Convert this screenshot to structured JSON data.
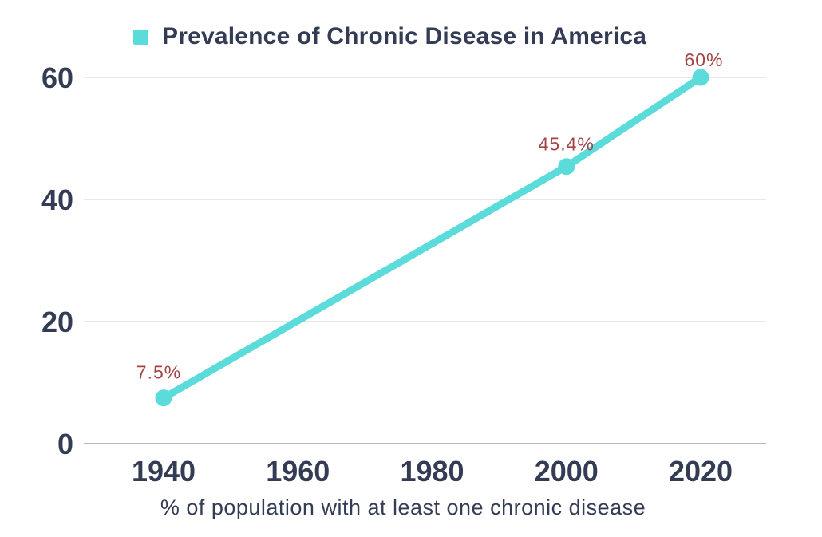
{
  "colors": {
    "accent_teal": "#5BDBD9",
    "text_navy": "#333C54",
    "data_label_red": "#A34444",
    "gridline_gray": "#DBDBDB",
    "axis_gray": "#B3B7C1",
    "background": "#FFFFFF"
  },
  "chart_data": {
    "type": "line",
    "title": "Prevalence of Chronic Disease in America",
    "legend": [
      {
        "label": "Prevalence of Chronic Disease in America",
        "color": "#5BDBD9"
      }
    ],
    "legend_position": "top",
    "caption": "% of population with at least one chronic disease",
    "x": [
      1940,
      2000,
      2020
    ],
    "values": [
      7.5,
      45.4,
      60
    ],
    "point_labels": [
      "7.5%",
      "45.4%",
      "60%"
    ],
    "x_tick_labels": [
      "1940",
      "1960",
      "1980",
      "2000",
      "2020"
    ],
    "x_ticks": [
      1940,
      1960,
      1980,
      2000,
      2020
    ],
    "y_ticks": [
      0,
      20,
      40,
      60
    ],
    "y_tick_labels": [
      "0",
      "20",
      "40",
      "60"
    ],
    "xlim": [
      1940,
      2020
    ],
    "ylim": [
      0,
      60
    ],
    "grid": "horizontal",
    "series_name": "Prevalence of Chronic Disease in America",
    "line_color": "#5BDBD9",
    "point_label_color": "#A34444"
  }
}
